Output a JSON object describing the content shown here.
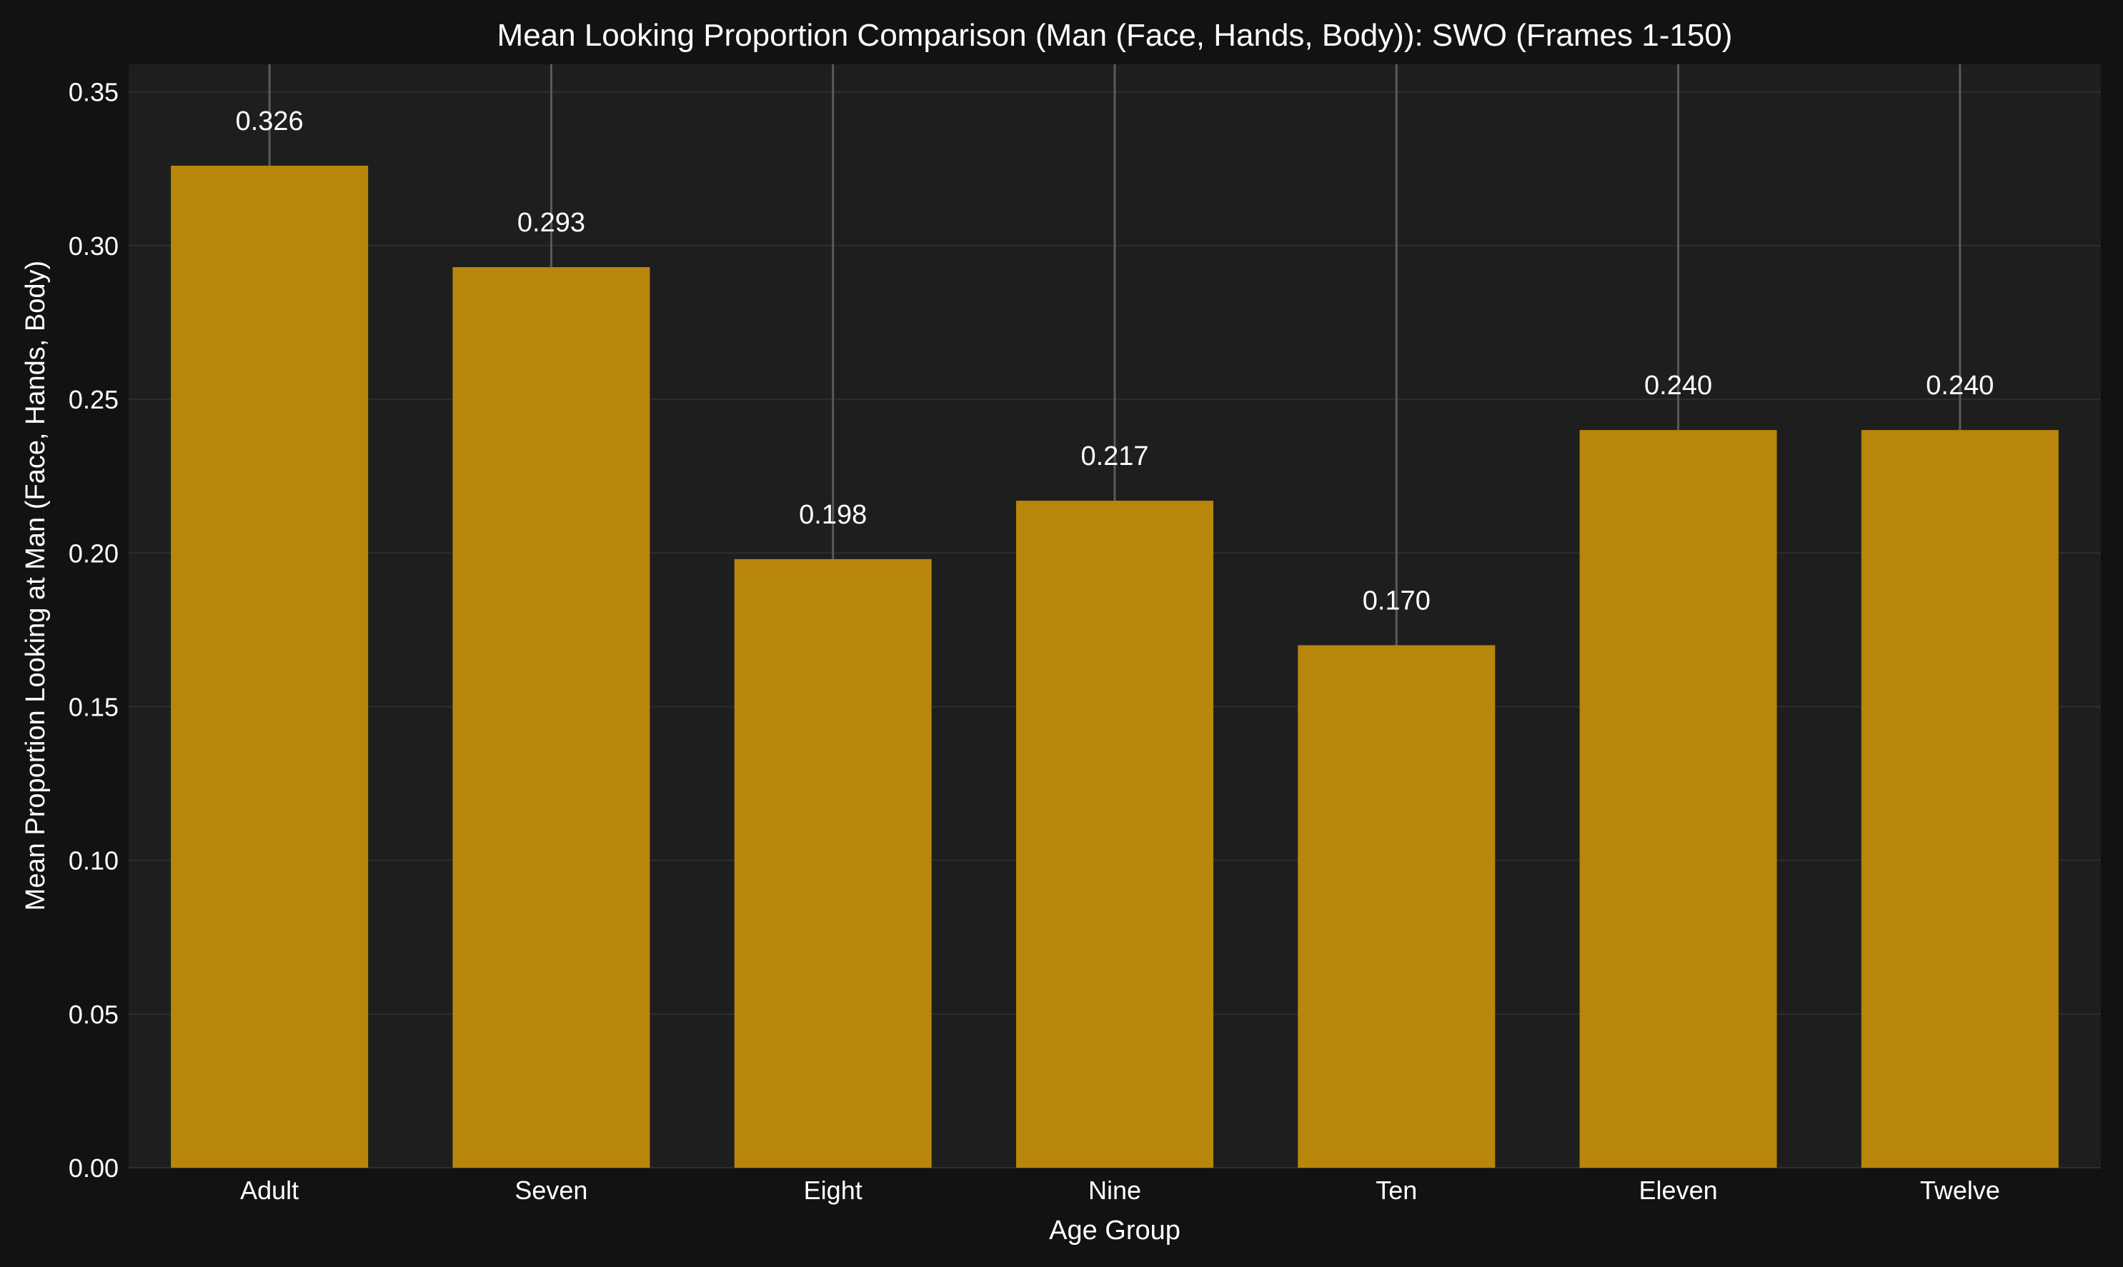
{
  "chart_data": {
    "type": "bar",
    "title": "Mean Looking Proportion Comparison (Man (Face, Hands, Body)): SWO (Frames 1-150)",
    "xlabel": "Age Group",
    "ylabel": "Mean Proportion Looking at Man (Face, Hands, Body)",
    "categories": [
      "Adult",
      "Seven",
      "Eight",
      "Nine",
      "Ten",
      "Eleven",
      "Twelve"
    ],
    "values": [
      0.326,
      0.293,
      0.198,
      0.217,
      0.17,
      0.24,
      0.24
    ],
    "value_labels": [
      "0.326",
      "0.293",
      "0.198",
      "0.217",
      "0.170",
      "0.240",
      "0.240"
    ],
    "yticks": [
      0.0,
      0.05,
      0.1,
      0.15,
      0.2,
      0.25,
      0.3,
      0.35
    ],
    "ytick_labels": [
      "0.00",
      "0.05",
      "0.10",
      "0.15",
      "0.20",
      "0.25",
      "0.30",
      "0.35"
    ],
    "ylim": [
      0,
      0.359
    ],
    "grid": true,
    "legend": "none",
    "colors": {
      "bar": "#b8860b",
      "figure_background": "#121212",
      "plot_background": "#1e1e1e",
      "grid": "#2e2e2e",
      "error_line": "#5a5a5a",
      "text": "#ffffff"
    }
  }
}
